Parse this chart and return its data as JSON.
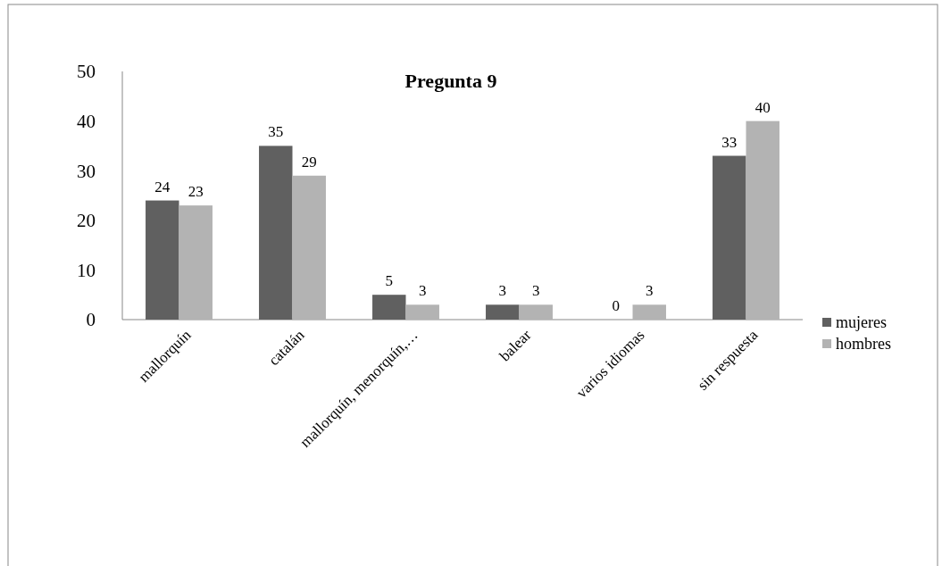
{
  "chart_data": {
    "type": "bar",
    "title": "Pregunta  9",
    "categories": [
      "mallorquín",
      "catalán",
      "mallorquín, menorquín,…",
      "balear",
      "varios idiomas",
      "sin respuesta"
    ],
    "series": [
      {
        "name": "mujeres",
        "color": "#606060",
        "values": [
          24,
          35,
          5,
          3,
          0,
          33
        ]
      },
      {
        "name": "hombres",
        "color": "#b3b3b3",
        "values": [
          23,
          29,
          3,
          3,
          3,
          40
        ]
      }
    ],
    "ylim": [
      0,
      50
    ],
    "yticks": [
      0,
      10,
      20,
      30,
      40,
      50
    ],
    "grid": false,
    "legend": "right",
    "data_labels": true
  }
}
